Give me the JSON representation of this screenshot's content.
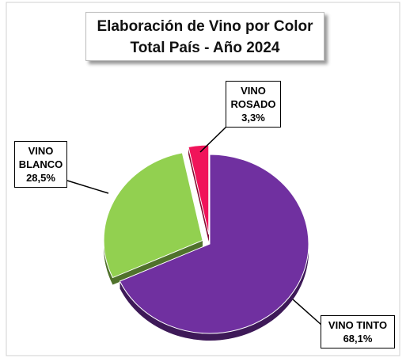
{
  "chart_data": {
    "type": "pie",
    "title": "Elaboración de Vino por Color",
    "subtitle": "Total País - Año 2024",
    "categories": [
      "VINO TINTO",
      "VINO BLANCO",
      "VINO ROSADO"
    ],
    "values": [
      68.1,
      28.5,
      3.3
    ],
    "value_labels": [
      "68,1%",
      "28,5%",
      "3,3%"
    ],
    "colors": [
      "#7030a0",
      "#92d050",
      "#f0145a"
    ]
  }
}
